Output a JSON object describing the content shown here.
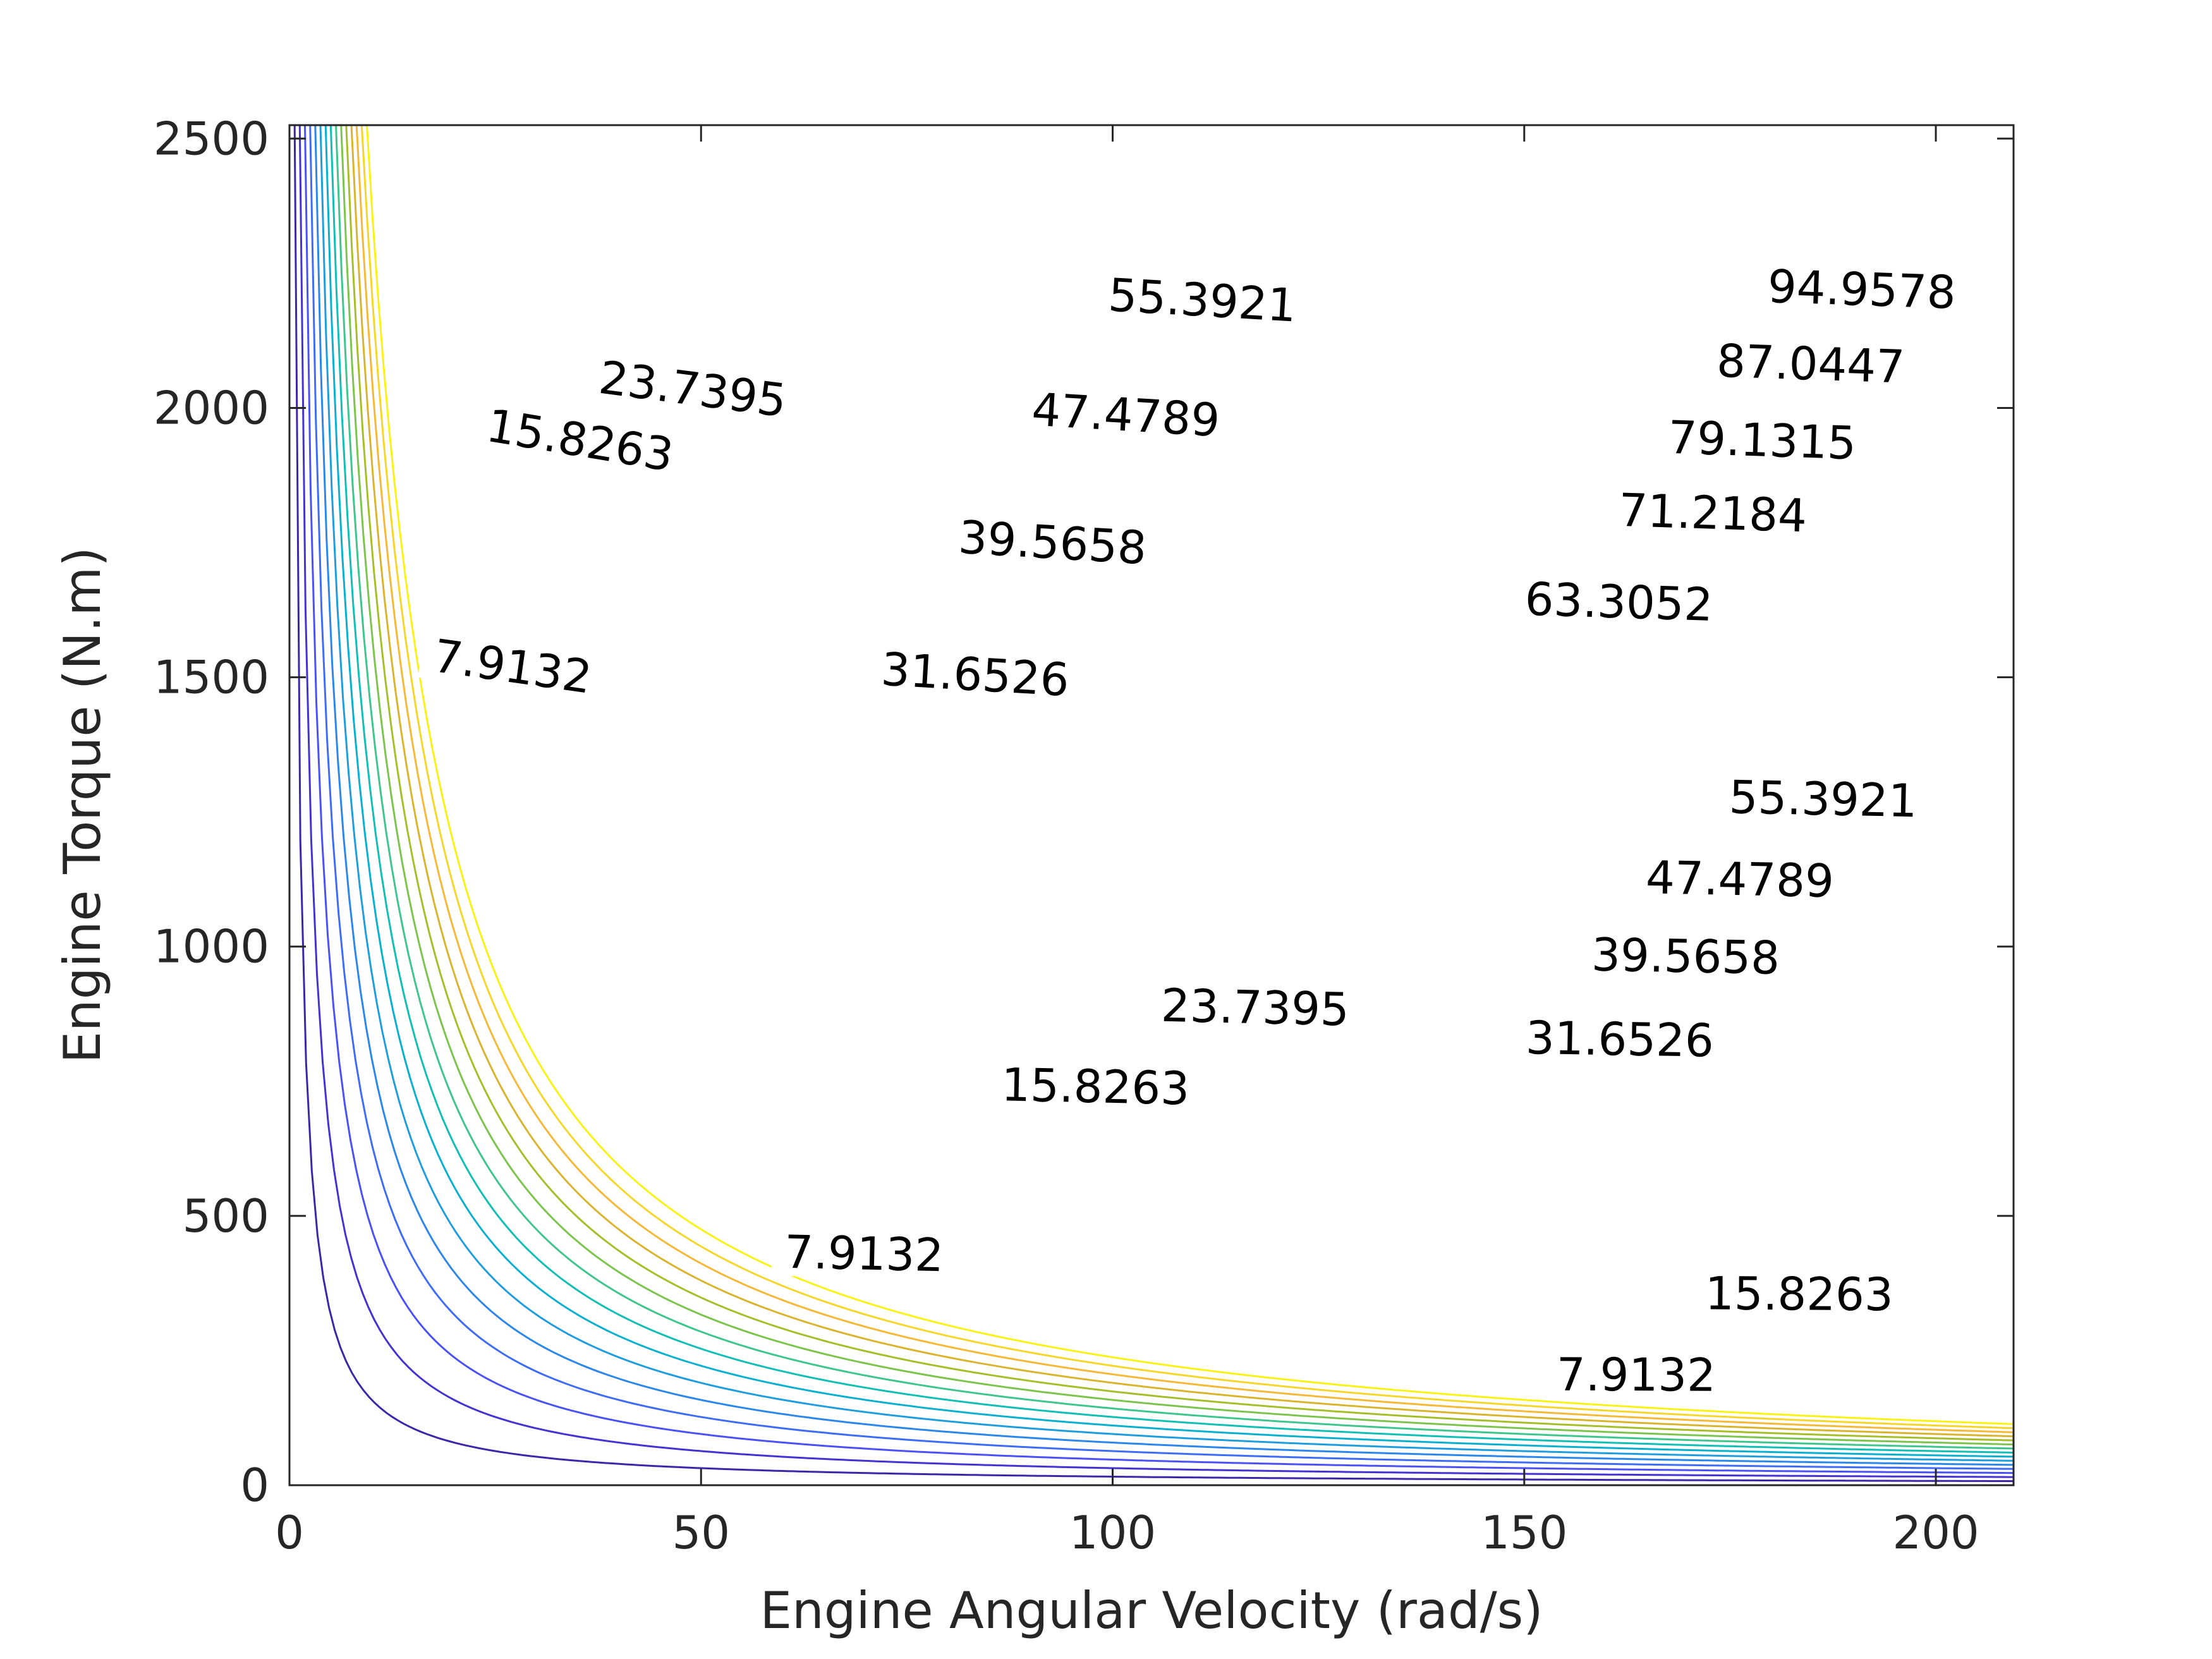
{
  "chart_data": {
    "type": "contour",
    "title": "",
    "xlabel": "Engine Angular Velocity (rad/s)",
    "ylabel": "Engine Torque (N.m)",
    "xlim": [
      0,
      209.44
    ],
    "ylim": [
      0,
      2525
    ],
    "xticks": [
      0,
      50,
      100,
      150,
      200
    ],
    "yticks": [
      0,
      500,
      1000,
      1500,
      2000,
      2500
    ],
    "grid": false,
    "colormap": "parula",
    "levels": [
      {
        "value": 7.9132,
        "label": "7.9132",
        "color": "#3e26a8"
      },
      {
        "value": 15.8263,
        "label": "15.8263",
        "color": "#4433d0"
      },
      {
        "value": 23.7395,
        "label": "23.7395",
        "color": "#4a52f6"
      },
      {
        "value": 31.6526,
        "label": "31.6526",
        "color": "#3e6cf6"
      },
      {
        "value": 39.5658,
        "label": "39.5658",
        "color": "#2c87ea"
      },
      {
        "value": 47.4789,
        "label": "47.4789",
        "color": "#1f9ddc"
      },
      {
        "value": 55.3921,
        "label": "55.3921",
        "color": "#0bb0cf"
      },
      {
        "value": 63.3052,
        "label": "63.3052",
        "color": "#13beb4"
      },
      {
        "value": 71.2184,
        "label": "71.2184",
        "color": "#3fc58d"
      },
      {
        "value": 79.1315,
        "label": "79.1315",
        "color": "#7cc44e"
      },
      {
        "value": 87.0447,
        "label": "87.0447",
        "color": "#a7be2a"
      },
      {
        "value": 94.9578,
        "label": "94.9578",
        "color": "#d9b42e"
      },
      {
        "value": 102.871,
        "label": "",
        "color": "#f4b938"
      },
      {
        "value": 110.7841,
        "label": "",
        "color": "#f5d62a"
      },
      {
        "value": 118.6973,
        "label": "",
        "color": "#f9f216"
      }
    ],
    "contour_labels": [
      {
        "level": 7.9132,
        "x": 27.1,
        "y": 1520
      },
      {
        "level": 7.9132,
        "x": 69.8,
        "y": 430
      },
      {
        "level": 7.9132,
        "x": 163.6,
        "y": 205
      },
      {
        "level": 15.8263,
        "x": 35.3,
        "y": 1940
      },
      {
        "level": 15.8263,
        "x": 97.9,
        "y": 740
      },
      {
        "level": 15.8263,
        "x": 183.4,
        "y": 355
      },
      {
        "level": 23.7395,
        "x": 49.0,
        "y": 2035
      },
      {
        "level": 23.7395,
        "x": 117.3,
        "y": 887
      },
      {
        "level": 31.6526,
        "x": 83.3,
        "y": 1505
      },
      {
        "level": 31.6526,
        "x": 161.6,
        "y": 828
      },
      {
        "level": 39.5658,
        "x": 92.7,
        "y": 1750
      },
      {
        "level": 39.5658,
        "x": 169.6,
        "y": 982
      },
      {
        "level": 47.4789,
        "x": 101.6,
        "y": 1987
      },
      {
        "level": 47.4789,
        "x": 176.2,
        "y": 1125
      },
      {
        "level": 55.3921,
        "x": 110.9,
        "y": 2200
      },
      {
        "level": 55.3921,
        "x": 186.3,
        "y": 1274
      },
      {
        "level": 63.3052,
        "x": 161.5,
        "y": 1640
      },
      {
        "level": 71.2184,
        "x": 172.9,
        "y": 1805
      },
      {
        "level": 79.1315,
        "x": 178.9,
        "y": 1940
      },
      {
        "level": 87.0447,
        "x": 184.8,
        "y": 2082
      },
      {
        "level": 94.9578,
        "x": 191.0,
        "y": 2220
      }
    ]
  }
}
